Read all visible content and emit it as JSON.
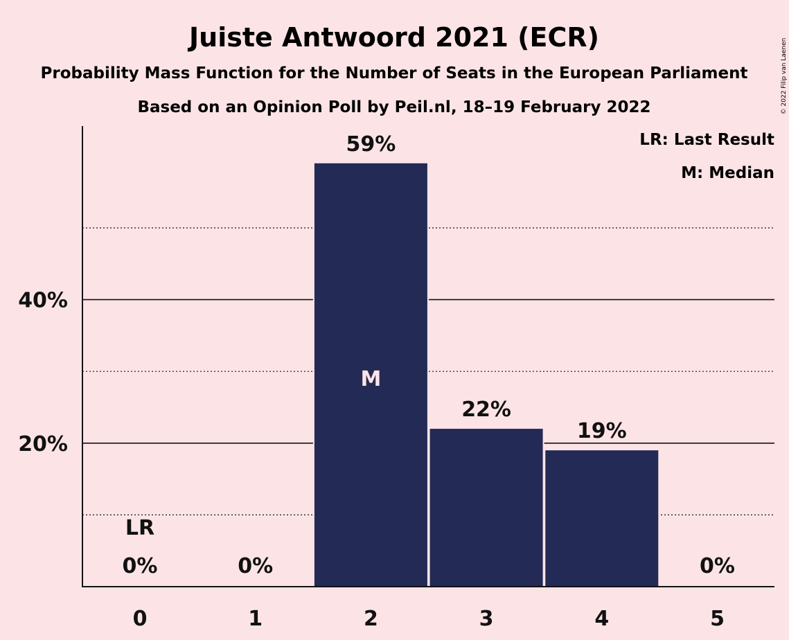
{
  "chart_data": {
    "type": "bar",
    "title": "Juiste Antwoord 2021 (ECR)",
    "subtitle": "Probability Mass Function for the Number of Seats in the European Parliament",
    "subtitle2": "Based on an Opinion Poll by Peil.nl, 18–19 February 2022",
    "categories": [
      "0",
      "1",
      "2",
      "3",
      "4",
      "5"
    ],
    "values": [
      0,
      0,
      59,
      22,
      19,
      0
    ],
    "value_labels": [
      "0%",
      "0%",
      "59%",
      "22%",
      "19%",
      "0%"
    ],
    "ylim": [
      0,
      64
    ],
    "yticks_major": [
      20,
      40
    ],
    "ytick_labels": [
      "20%",
      "40%"
    ],
    "yticks_minor": [
      10,
      30,
      50
    ],
    "last_result_index": 0,
    "last_result_marker": "LR",
    "median_index": 2,
    "median_marker": "M",
    "legend": [
      "LR: Last Result",
      "M: Median"
    ],
    "legend_position": "top-right",
    "copyright": "© 2022 Filip van Laenen",
    "colors": {
      "background": "#fce4e6",
      "bar": "#232a55",
      "text": "#111111",
      "median_text": "#fce4e6"
    }
  }
}
